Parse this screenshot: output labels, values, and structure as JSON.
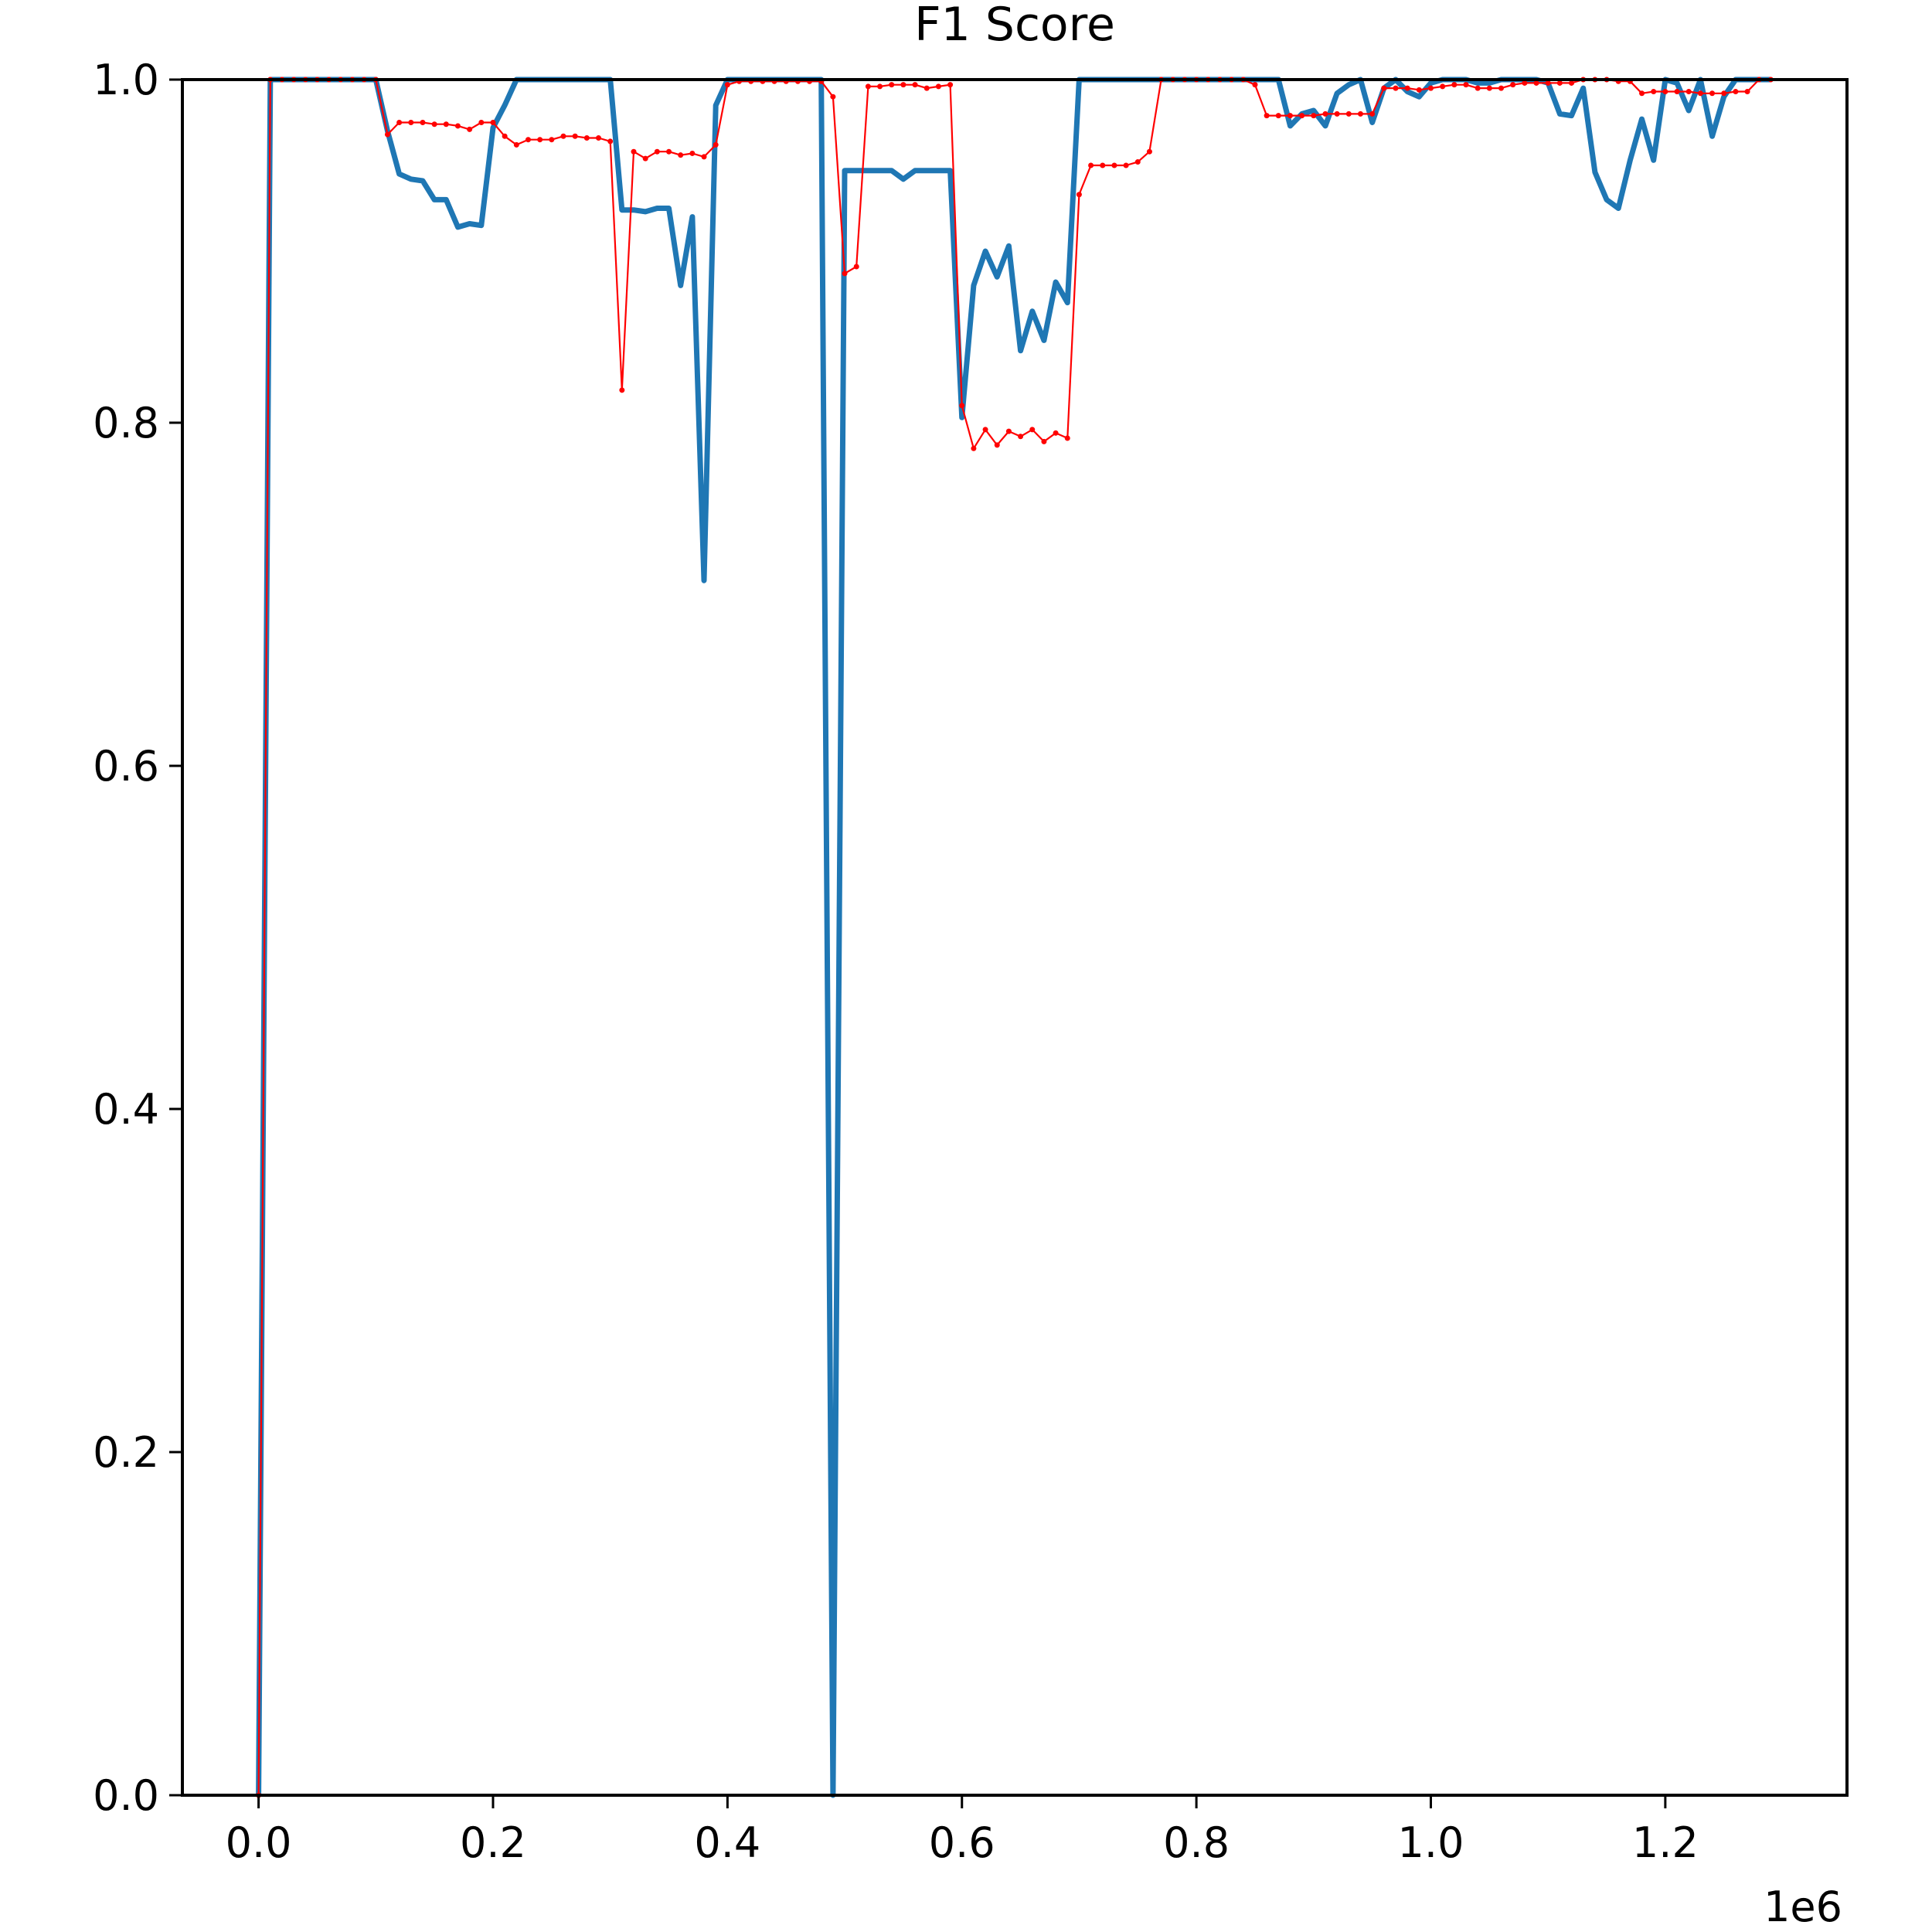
{
  "chart_data": {
    "type": "line",
    "title": "F1 Score",
    "xlabel": "",
    "ylabel": "",
    "x_offset_label": "1e6",
    "xlim": [
      -0.065,
      1.355
    ],
    "ylim": [
      0.0,
      1.0
    ],
    "xticks": [
      0.0,
      0.2,
      0.4,
      0.6,
      0.8,
      1.0,
      1.2
    ],
    "xtick_labels": [
      "0.0",
      "0.2",
      "0.4",
      "0.6",
      "0.8",
      "1.0",
      "1.2"
    ],
    "yticks": [
      0.0,
      0.2,
      0.4,
      0.6,
      0.8,
      1.0
    ],
    "ytick_labels": [
      "0.0",
      "0.2",
      "0.4",
      "0.6",
      "0.8",
      "1.0"
    ],
    "grid": false,
    "series": [
      {
        "color": "#1f77b4",
        "style": "solid-thick",
        "markers": false,
        "x": [
          0.0,
          0.01,
          0.02,
          0.03,
          0.04,
          0.05,
          0.06,
          0.07,
          0.08,
          0.09,
          0.1,
          0.11,
          0.12,
          0.13,
          0.14,
          0.15,
          0.16,
          0.17,
          0.18,
          0.19,
          0.2,
          0.21,
          0.22,
          0.23,
          0.24,
          0.25,
          0.26,
          0.27,
          0.28,
          0.29,
          0.3,
          0.31,
          0.32,
          0.33,
          0.34,
          0.35,
          0.36,
          0.37,
          0.38,
          0.39,
          0.4,
          0.41,
          0.42,
          0.43,
          0.44,
          0.45,
          0.46,
          0.47,
          0.48,
          0.49,
          0.5,
          0.51,
          0.52,
          0.53,
          0.54,
          0.55,
          0.56,
          0.57,
          0.58,
          0.59,
          0.6,
          0.61,
          0.62,
          0.63,
          0.64,
          0.65,
          0.66,
          0.67,
          0.68,
          0.69,
          0.7,
          0.71,
          0.72,
          0.73,
          0.74,
          0.75,
          0.76,
          0.77,
          0.78,
          0.79,
          0.8,
          0.81,
          0.82,
          0.83,
          0.84,
          0.85,
          0.86,
          0.87,
          0.88,
          0.89,
          0.9,
          0.91,
          0.92,
          0.93,
          0.94,
          0.95,
          0.96,
          0.97,
          0.98,
          0.99,
          1.0,
          1.01,
          1.02,
          1.03,
          1.04,
          1.05,
          1.06,
          1.07,
          1.08,
          1.09,
          1.1,
          1.11,
          1.12,
          1.13,
          1.14,
          1.15,
          1.16,
          1.17,
          1.18,
          1.19,
          1.2,
          1.21,
          1.22,
          1.23,
          1.24,
          1.25,
          1.26,
          1.27,
          1.28,
          1.29
        ],
        "y": [
          0.0,
          1.0,
          1.0,
          1.0,
          1.0,
          1.0,
          1.0,
          1.0,
          1.0,
          1.0,
          1.0,
          0.97,
          0.945,
          0.942,
          0.941,
          0.93,
          0.93,
          0.914,
          0.916,
          0.915,
          0.972,
          0.985,
          1.0,
          1.0,
          1.0,
          1.0,
          1.0,
          1.0,
          1.0,
          1.0,
          1.0,
          0.924,
          0.924,
          0.923,
          0.925,
          0.925,
          0.88,
          0.92,
          0.708,
          0.985,
          1.0,
          1.0,
          1.0,
          1.0,
          1.0,
          1.0,
          1.0,
          1.0,
          1.0,
          0.0,
          0.947,
          0.947,
          0.947,
          0.947,
          0.947,
          0.942,
          0.947,
          0.947,
          0.947,
          0.947,
          0.803,
          0.88,
          0.9,
          0.885,
          0.903,
          0.842,
          0.865,
          0.848,
          0.882,
          0.87,
          1.0,
          1.0,
          1.0,
          1.0,
          1.0,
          1.0,
          1.0,
          1.0,
          1.0,
          1.0,
          1.0,
          1.0,
          1.0,
          1.0,
          1.0,
          1.0,
          1.0,
          1.0,
          0.973,
          0.98,
          0.982,
          0.973,
          0.992,
          0.997,
          1.0,
          0.975,
          0.995,
          1.0,
          0.993,
          0.99,
          0.998,
          1.0,
          1.0,
          1.0,
          0.998,
          0.998,
          1.0,
          1.0,
          1.0,
          1.0,
          0.998,
          0.98,
          0.979,
          0.995,
          0.946,
          0.93,
          0.925,
          0.953,
          0.977,
          0.953,
          1.0,
          0.998,
          0.982,
          1.0,
          0.967,
          0.99,
          1.0,
          1.0,
          1.0,
          1.0
        ]
      },
      {
        "color": "#ff0000",
        "style": "solid-thin",
        "markers": true,
        "x": [
          0.0,
          0.01,
          0.02,
          0.03,
          0.04,
          0.05,
          0.06,
          0.07,
          0.08,
          0.09,
          0.1,
          0.11,
          0.12,
          0.13,
          0.14,
          0.15,
          0.16,
          0.17,
          0.18,
          0.19,
          0.2,
          0.21,
          0.22,
          0.23,
          0.24,
          0.25,
          0.26,
          0.27,
          0.28,
          0.29,
          0.3,
          0.31,
          0.32,
          0.33,
          0.34,
          0.35,
          0.36,
          0.37,
          0.38,
          0.39,
          0.4,
          0.41,
          0.42,
          0.43,
          0.44,
          0.45,
          0.46,
          0.47,
          0.48,
          0.49,
          0.5,
          0.51,
          0.52,
          0.53,
          0.54,
          0.55,
          0.56,
          0.57,
          0.58,
          0.59,
          0.6,
          0.61,
          0.62,
          0.63,
          0.64,
          0.65,
          0.66,
          0.67,
          0.68,
          0.69,
          0.7,
          0.71,
          0.72,
          0.73,
          0.74,
          0.75,
          0.76,
          0.77,
          0.78,
          0.79,
          0.8,
          0.81,
          0.82,
          0.83,
          0.84,
          0.85,
          0.86,
          0.87,
          0.88,
          0.89,
          0.9,
          0.91,
          0.92,
          0.93,
          0.94,
          0.95,
          0.96,
          0.97,
          0.98,
          0.99,
          1.0,
          1.01,
          1.02,
          1.03,
          1.04,
          1.05,
          1.06,
          1.07,
          1.08,
          1.09,
          1.1,
          1.11,
          1.12,
          1.13,
          1.14,
          1.15,
          1.16,
          1.17,
          1.18,
          1.19,
          1.2,
          1.21,
          1.22,
          1.23,
          1.24,
          1.25,
          1.26,
          1.27,
          1.28,
          1.29
        ],
        "y": [
          0.0,
          1.0,
          1.0,
          1.0,
          1.0,
          1.0,
          1.0,
          1.0,
          1.0,
          1.0,
          1.0,
          0.968,
          0.975,
          0.975,
          0.975,
          0.974,
          0.974,
          0.973,
          0.971,
          0.975,
          0.975,
          0.967,
          0.962,
          0.965,
          0.965,
          0.965,
          0.967,
          0.967,
          0.966,
          0.966,
          0.964,
          0.819,
          0.958,
          0.954,
          0.958,
          0.958,
          0.956,
          0.957,
          0.955,
          0.962,
          0.997,
          0.999,
          0.999,
          0.999,
          0.999,
          0.999,
          0.999,
          0.999,
          0.999,
          0.99,
          0.887,
          0.891,
          0.996,
          0.996,
          0.997,
          0.997,
          0.997,
          0.995,
          0.996,
          0.997,
          0.81,
          0.785,
          0.796,
          0.787,
          0.795,
          0.792,
          0.796,
          0.789,
          0.794,
          0.791,
          0.933,
          0.95,
          0.95,
          0.95,
          0.95,
          0.952,
          0.958,
          1.0,
          1.0,
          1.0,
          1.0,
          1.0,
          1.0,
          1.0,
          1.0,
          0.997,
          0.979,
          0.979,
          0.979,
          0.979,
          0.979,
          0.98,
          0.98,
          0.98,
          0.98,
          0.98,
          0.995,
          0.995,
          0.995,
          0.994,
          0.995,
          0.996,
          0.997,
          0.997,
          0.995,
          0.995,
          0.995,
          0.997,
          0.998,
          0.998,
          0.998,
          0.998,
          0.998,
          1.0,
          1.0,
          1.0,
          0.999,
          0.999,
          0.992,
          0.993,
          0.993,
          0.993,
          0.993,
          0.992,
          0.992,
          0.992,
          0.993,
          0.993,
          1.0,
          1.0
        ]
      }
    ]
  }
}
